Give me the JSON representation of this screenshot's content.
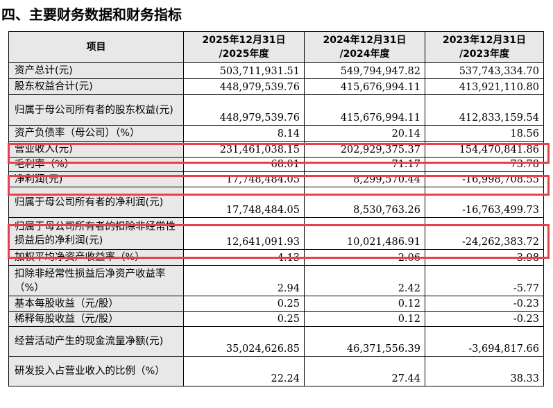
{
  "section_title": "四、主要财务数据和财务指标",
  "table": {
    "headers": [
      "项目",
      "2025年12月31日\n/2025年度",
      "2024年12月31日\n/2024年度",
      "2023年12月31日\n/2023年度"
    ],
    "rows": [
      {
        "label": "资产总计(元)",
        "values": [
          "503,711,931.51",
          "549,794,947.82",
          "537,743,334.70"
        ]
      },
      {
        "label": "股东权益合计(元)",
        "values": [
          "448,979,539.76",
          "415,676,994.11",
          "413,921,110.80"
        ]
      },
      {
        "label": "归属于母公司所有者的股东权益(元)",
        "values": [
          "448,979,539.76",
          "415,676,994.11",
          "412,833,159.54"
        ]
      },
      {
        "label": "资产负债率（母公司）（%）",
        "values": [
          "8.14",
          "20.14",
          "18.56"
        ]
      },
      {
        "label": "营业收入(元)",
        "values": [
          "231,461,038.15",
          "202,929,375.37",
          "154,470,841.86"
        ]
      },
      {
        "label": "毛利率（%）",
        "values": [
          "68.01",
          "71.17",
          "73.78"
        ]
      },
      {
        "label": "净利润(元)",
        "values": [
          "17,748,484.05",
          "8,299,570.44",
          "-16,998,708.55"
        ]
      },
      {
        "label": "归属于母公司所有者的净利润(元)",
        "values": [
          "17,748,484.05",
          "8,530,763.26",
          "-16,763,499.73"
        ]
      },
      {
        "label": "归属于母公司所有者的扣除非经常性损益后的净利润(元)",
        "values": [
          "12,641,091.93",
          "10,021,486.91",
          "-24,262,383.72"
        ]
      },
      {
        "label": "加权平均净资产收益率（%）",
        "values": [
          "4.13",
          "2.06",
          "-3.98"
        ]
      },
      {
        "label": "扣除非经常性损益后净资产收益率（%）",
        "values": [
          "2.94",
          "2.42",
          "-5.77"
        ]
      },
      {
        "label": "基本每股收益（元/股）",
        "values": [
          "0.25",
          "0.12",
          "-0.23"
        ]
      },
      {
        "label": "稀释每股收益（元/股）",
        "values": [
          "0.25",
          "0.12",
          "-0.23"
        ]
      },
      {
        "label": "经营活动产生的现金流量净额(元)",
        "values": [
          "35,024,626.85",
          "46,371,556.39",
          "-3,694,817.66"
        ]
      },
      {
        "label": "研发投入占营业收入的比例（%）",
        "values": [
          "22.24",
          "27.44",
          "38.33"
        ]
      }
    ]
  },
  "highlight_color": "#e8404a"
}
